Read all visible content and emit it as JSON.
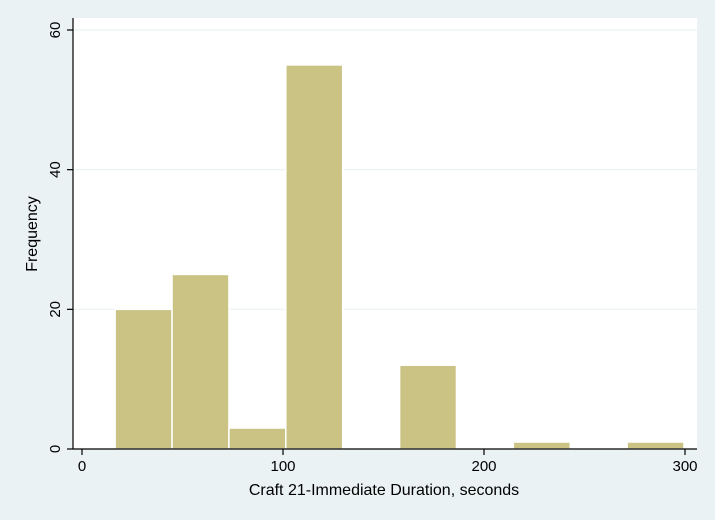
{
  "chart_data": {
    "type": "bar",
    "title": "",
    "xlabel": "Craft 21-Immediate Duration, seconds",
    "ylabel": "Frequency",
    "xlim": [
      -8,
      305
    ],
    "ylim": [
      0,
      60
    ],
    "xticks": [
      0,
      100,
      200,
      300
    ],
    "yticks": [
      0,
      20,
      40,
      60
    ],
    "grid": true,
    "bins": [
      {
        "start": 16.5,
        "end": 44.8,
        "value": 20
      },
      {
        "start": 44.8,
        "end": 73.1,
        "value": 25
      },
      {
        "start": 73.1,
        "end": 101.4,
        "value": 3
      },
      {
        "start": 101.4,
        "end": 129.7,
        "value": 55
      },
      {
        "start": 158.0,
        "end": 186.3,
        "value": 12
      },
      {
        "start": 214.6,
        "end": 242.9,
        "value": 1
      },
      {
        "start": 271.2,
        "end": 299.5,
        "value": 1
      }
    ],
    "colors": {
      "bar_fill": "#cbc383",
      "bar_edge": "#ffffff",
      "outer_background": "#eaf2f3",
      "plot_background": "#ffffff",
      "grid": "#eaf2f3",
      "axis": "#000000"
    }
  }
}
